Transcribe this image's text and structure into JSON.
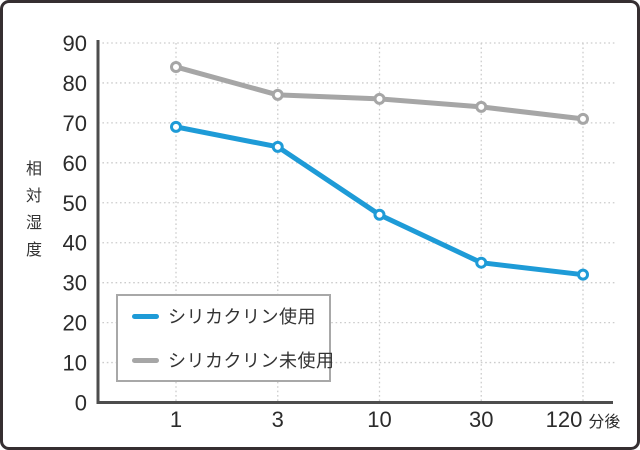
{
  "chart_data": {
    "type": "line",
    "title": "",
    "ylabel": "相対湿度",
    "xlabel": "",
    "x_suffix": "分後",
    "categories": [
      "1",
      "3",
      "10",
      "30",
      "120"
    ],
    "ylim": [
      0,
      90
    ],
    "yticks": [
      0,
      10,
      20,
      30,
      40,
      50,
      60,
      70,
      80,
      90
    ],
    "grid": "dotted",
    "legend_position": "inside-lower-left",
    "series": [
      {
        "name": "シリカクリン使用",
        "color": "#1e9bd7",
        "values": [
          69,
          64,
          47,
          35,
          32
        ]
      },
      {
        "name": "シリカクリン未使用",
        "color": "#a6a6a6",
        "values": [
          84,
          77,
          76,
          74,
          71
        ]
      }
    ]
  },
  "theme": {
    "axis_color": "#4d4d4d",
    "grid_color": "#cccccc",
    "tick_text_color": "#2b2b2b",
    "frame_border_color": "#352f31",
    "legend_border_color": "#a8a8a8",
    "marker_fill": "#ffffff",
    "background": "#ffffff"
  }
}
